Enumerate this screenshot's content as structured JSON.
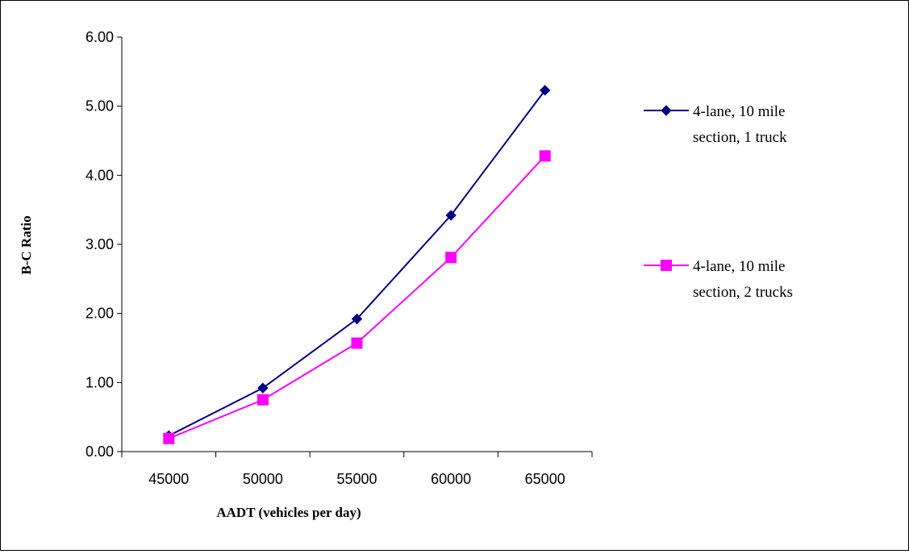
{
  "chart_data": {
    "type": "line",
    "categories": [
      "45000",
      "50000",
      "55000",
      "60000",
      "65000"
    ],
    "xlabel": "AADT (vehicles per day)",
    "ylabel": "B-C Ratio",
    "ylim": [
      0,
      6
    ],
    "yticks": [
      "0.00",
      "1.00",
      "2.00",
      "3.00",
      "4.00",
      "5.00",
      "6.00"
    ],
    "grid": false,
    "legend_position": "right",
    "series": [
      {
        "name": "4-lane, 10 mile section, 1 truck",
        "legend_lines": [
          "4-lane, 10 mile",
          "section, 1 truck"
        ],
        "color": "#000080",
        "marker": "diamond",
        "values": [
          0.23,
          0.92,
          1.92,
          3.42,
          5.23
        ]
      },
      {
        "name": "4-lane, 10 mile section, 2 trucks",
        "legend_lines": [
          "4-lane, 10 mile",
          "section, 2 trucks"
        ],
        "color": "#FF00FF",
        "marker": "square",
        "values": [
          0.19,
          0.75,
          1.57,
          2.81,
          4.28
        ]
      }
    ]
  }
}
